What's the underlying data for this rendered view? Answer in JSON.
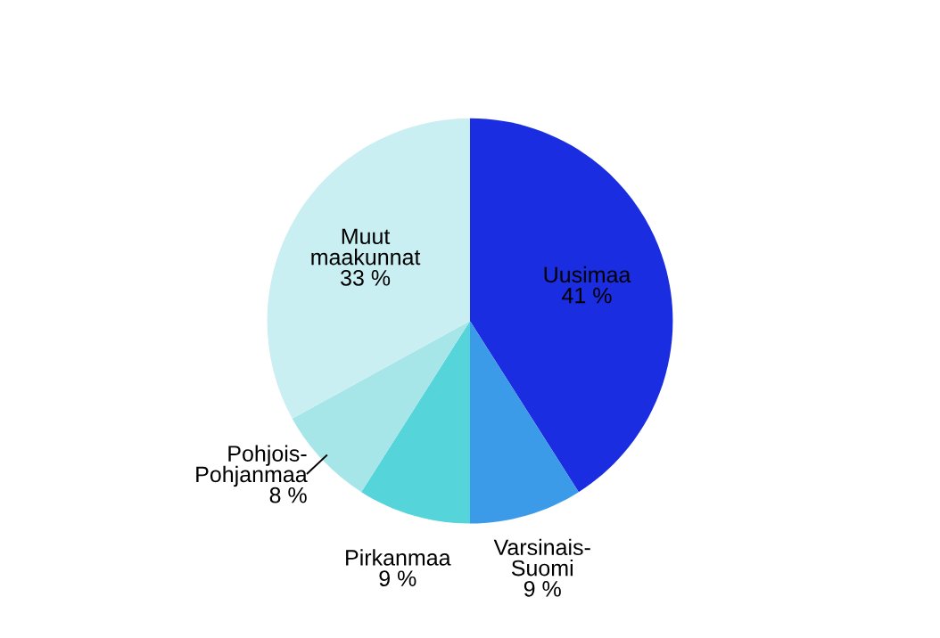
{
  "chart_data": {
    "type": "pie",
    "categories": [
      "Uusimaa",
      "Varsinais-\nSuomi",
      "Pirkanmaa",
      "Pohjois-\nPohjanmaa",
      "Muut\nmaakunnat"
    ],
    "values": [
      41,
      9,
      9,
      8,
      33
    ],
    "value_labels": [
      "41 %",
      "9 %",
      "9 %",
      "8 %",
      "33 %"
    ],
    "colors": [
      "#1a2de0",
      "#3c9be9",
      "#55d4da",
      "#a6e6e9",
      "#c9eff3"
    ],
    "legend": false
  }
}
